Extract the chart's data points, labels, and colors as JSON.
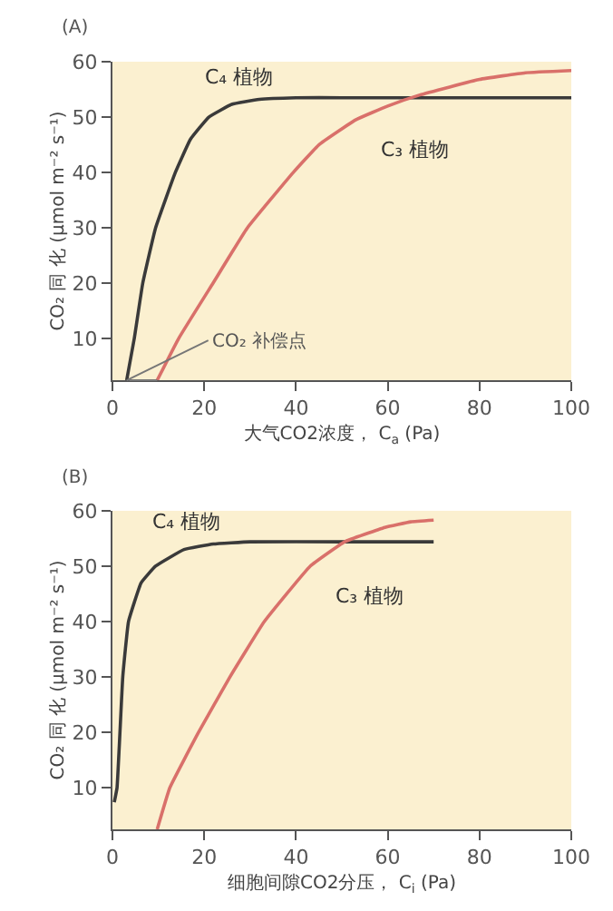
{
  "chart_data": [
    {
      "type": "line",
      "title": "(A)",
      "xlabel": "大气CO2浓度， C$_{a}$ (Pa)",
      "ylabel": "CO₂ 同 化 (μmol m⁻² s⁻¹)",
      "xlim": [
        0,
        100
      ],
      "xticks": [
        0,
        20,
        40,
        60,
        80,
        100
      ],
      "ylim": [
        2.5,
        60
      ],
      "yticks": [
        10,
        20,
        30,
        40,
        50,
        60
      ],
      "grid": false,
      "marker": "none",
      "line_style": "solid",
      "series": [
        {
          "name": "C₄ 植物",
          "color": "#3a3a3a",
          "x": [
            3.1,
            4.75,
            6.6,
            9.4,
            13.7,
            17,
            21,
            26,
            32,
            40,
            50,
            100
          ],
          "values": [
            2.5,
            10,
            20,
            30,
            40,
            46,
            50,
            52.3,
            53.2,
            53.5,
            53.5,
            53.5
          ]
        },
        {
          "name": "C₃ 植物",
          "color": "#d9706a",
          "x": [
            9.75,
            14.4,
            21.9,
            29.4,
            39.4,
            45,
            53,
            60,
            67,
            80,
            90,
            100
          ],
          "values": [
            2.5,
            10,
            20,
            30,
            40,
            45,
            49.5,
            52,
            54,
            56.8,
            58,
            58.4
          ]
        }
      ],
      "annotations": [
        {
          "text": "CO₂ 补偿点",
          "x": 3.1,
          "y": 2.5
        }
      ]
    },
    {
      "type": "line",
      "title": "(B)",
      "xlabel": "细胞间隙CO2分压， C$_{i}$ (Pa)",
      "ylabel": "CO₂ 同 化 (μmol m⁻² s⁻¹)",
      "xlim": [
        0,
        100
      ],
      "xticks": [
        0,
        20,
        40,
        60,
        80,
        100
      ],
      "ylim": [
        2.5,
        60
      ],
      "yticks": [
        10,
        20,
        30,
        40,
        50,
        60
      ],
      "grid": false,
      "marker": "none",
      "line_style": "solid",
      "series": [
        {
          "name": "C₄ 植物",
          "color": "#3a3a3a",
          "x": [
            0.4,
            1,
            2.25,
            3.5,
            6.25,
            9.4,
            15.6,
            22,
            30,
            50,
            70
          ],
          "values": [
            7.4,
            10,
            30,
            40,
            47,
            50,
            53,
            54,
            54.4,
            54.4,
            54.4
          ]
        },
        {
          "name": "C₃ 植物",
          "color": "#d9706a",
          "x": [
            9.75,
            12.5,
            18.75,
            25.6,
            33.1,
            43.1,
            50.6,
            59.4,
            65,
            70
          ],
          "values": [
            2.5,
            10,
            20,
            30,
            40,
            50,
            54.4,
            57,
            58,
            58.3
          ]
        }
      ]
    }
  ]
}
